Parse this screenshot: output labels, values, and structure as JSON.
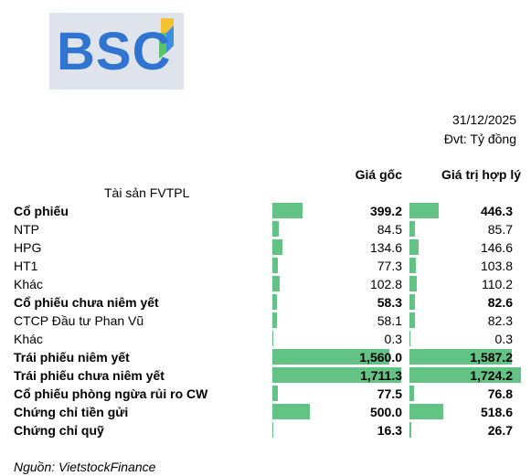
{
  "logo": {
    "text": "BSC"
  },
  "header": {
    "date": "31/12/2025",
    "unit": "Đvt: Tỷ đồng"
  },
  "table": {
    "column_headers": {
      "cost": "Giá gốc",
      "fair": "Giá trị hợp lý"
    },
    "asset_heading": "Tài sản FVTPL",
    "max_value": 1724.2,
    "rows": [
      {
        "label": "Cổ phiếu",
        "bold": true,
        "cost": 399.2,
        "cost_text": "399.2",
        "fair": 446.3,
        "fair_text": "446.3"
      },
      {
        "label": "NTP",
        "bold": false,
        "cost": 84.5,
        "cost_text": "84.5",
        "fair": 85.7,
        "fair_text": "85.7"
      },
      {
        "label": "HPG",
        "bold": false,
        "cost": 134.6,
        "cost_text": "134.6",
        "fair": 146.6,
        "fair_text": "146.6"
      },
      {
        "label": "HT1",
        "bold": false,
        "cost": 77.3,
        "cost_text": "77.3",
        "fair": 103.8,
        "fair_text": "103.8"
      },
      {
        "label": "Khác",
        "bold": false,
        "cost": 102.8,
        "cost_text": "102.8",
        "fair": 110.2,
        "fair_text": "110.2"
      },
      {
        "label": "Cổ phiếu chưa niêm yết",
        "bold": true,
        "cost": 58.3,
        "cost_text": "58.3",
        "fair": 82.6,
        "fair_text": "82.6"
      },
      {
        "label": "CTCP Đầu tư Phan Vũ",
        "bold": false,
        "cost": 58.1,
        "cost_text": "58.1",
        "fair": 82.3,
        "fair_text": "82.3"
      },
      {
        "label": "Khác",
        "bold": false,
        "cost": 0.3,
        "cost_text": "0.3",
        "fair": 0.3,
        "fair_text": "0.3"
      },
      {
        "label": "Trái phiếu niêm yết",
        "bold": true,
        "cost": 1560.0,
        "cost_text": "1,560.0",
        "fair": 1587.2,
        "fair_text": "1,587.2"
      },
      {
        "label": "Trái phiếu chưa niêm yết",
        "bold": true,
        "cost": 1711.3,
        "cost_text": "1,711.3",
        "fair": 1724.2,
        "fair_text": "1,724.2"
      },
      {
        "label": "Cổ phiếu phòng ngừa rủi ro CW",
        "bold": true,
        "cost": 77.5,
        "cost_text": "77.5",
        "fair": 76.8,
        "fair_text": "76.8"
      },
      {
        "label": "Chứng chỉ tiền gửi",
        "bold": true,
        "cost": 500.0,
        "cost_text": "500.0",
        "fair": 518.6,
        "fair_text": "518.6"
      },
      {
        "label": "Chứng chỉ quỹ",
        "bold": true,
        "cost": 16.3,
        "cost_text": "16.3",
        "fair": 26.7,
        "fair_text": "26.7"
      }
    ]
  },
  "source": "Nguồn: VietstockFinance",
  "colors": {
    "bar": "#63c384",
    "logo_blue": "#2e74d0",
    "logo_green": "#5cc36b"
  }
}
